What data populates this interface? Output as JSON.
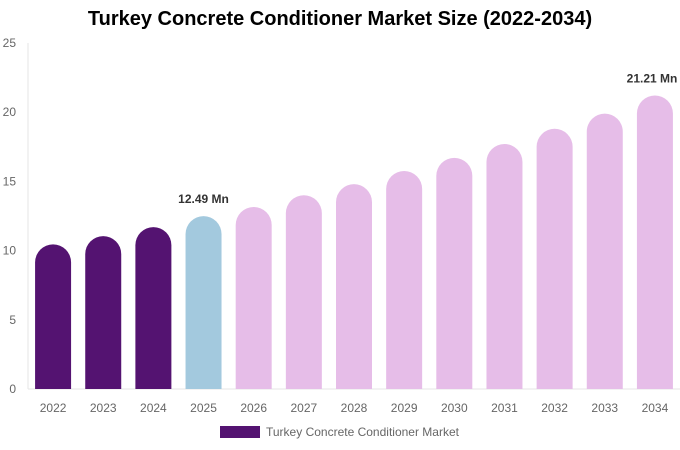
{
  "chart_data": {
    "type": "bar",
    "title": "Turkey Concrete Conditioner Market Size (2022-2034)",
    "xlabel": "",
    "ylabel": "",
    "ylim": [
      0,
      25
    ],
    "yticks": [
      0,
      5,
      10,
      15,
      20,
      25
    ],
    "grid": false,
    "legend_position": "bottom",
    "categories": [
      "2022",
      "2023",
      "2024",
      "2025",
      "2026",
      "2027",
      "2028",
      "2029",
      "2030",
      "2031",
      "2032",
      "2033",
      "2034"
    ],
    "series": [
      {
        "name": "Turkey Concrete Conditioner Market",
        "values": [
          10.45,
          11.05,
          11.7,
          12.49,
          13.15,
          14.0,
          14.8,
          15.75,
          16.7,
          17.7,
          18.8,
          19.9,
          21.21
        ]
      }
    ],
    "bar_colors": [
      "#541371",
      "#541371",
      "#541371",
      "#a3c9de",
      "#e6bde8",
      "#e6bde8",
      "#e6bde8",
      "#e6bde8",
      "#e6bde8",
      "#e6bde8",
      "#e6bde8",
      "#e6bde8",
      "#e6bde8"
    ],
    "legend_color": "#541371",
    "annotations": [
      {
        "category": "2025",
        "text": "12.49 Mn"
      },
      {
        "category": "2034",
        "text": "21.21 Mn"
      }
    ]
  }
}
